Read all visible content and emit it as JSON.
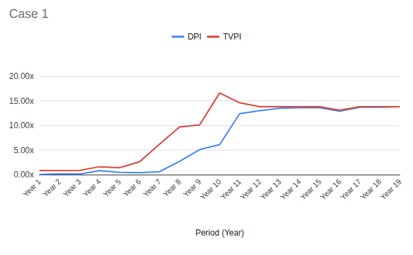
{
  "chart_data": {
    "type": "line",
    "title": "Case 1",
    "x_label": "Period (Year)",
    "categories": [
      "Year 1",
      "Year 2",
      "Year 3",
      "Year 4",
      "Year 5",
      "Year 6",
      "Year 7",
      "Year 8",
      "Year 9",
      "Year 10",
      "Year 11",
      "Year 12",
      "Year 13",
      "Year 14",
      "Year 15",
      "Year 16",
      "Year 17",
      "Year 18",
      "Year 19"
    ],
    "series": [
      {
        "name": "DPI",
        "color": "#4285f4",
        "values": [
          0.05,
          0.15,
          0.1,
          0.8,
          0.45,
          0.4,
          0.6,
          2.7,
          5.1,
          6.1,
          12.4,
          13.0,
          13.5,
          13.6,
          13.6,
          12.9,
          13.7,
          13.7,
          13.8
        ]
      },
      {
        "name": "TVPI",
        "color": "#db4437",
        "values": [
          0.85,
          0.8,
          0.85,
          1.6,
          1.4,
          2.6,
          6.2,
          9.7,
          10.1,
          16.6,
          14.6,
          13.8,
          13.8,
          13.8,
          13.8,
          13.1,
          13.8,
          13.8,
          13.8
        ]
      }
    ],
    "ylim": [
      0,
      20
    ],
    "yticks": [
      {
        "value": 0,
        "label": "0.00x"
      },
      {
        "value": 5,
        "label": "5.00x"
      },
      {
        "value": 10,
        "label": "10.00x"
      },
      {
        "value": 15,
        "label": "15.00x"
      },
      {
        "value": 20,
        "label": "20.00x"
      }
    ],
    "grid": true,
    "legend": "top"
  }
}
